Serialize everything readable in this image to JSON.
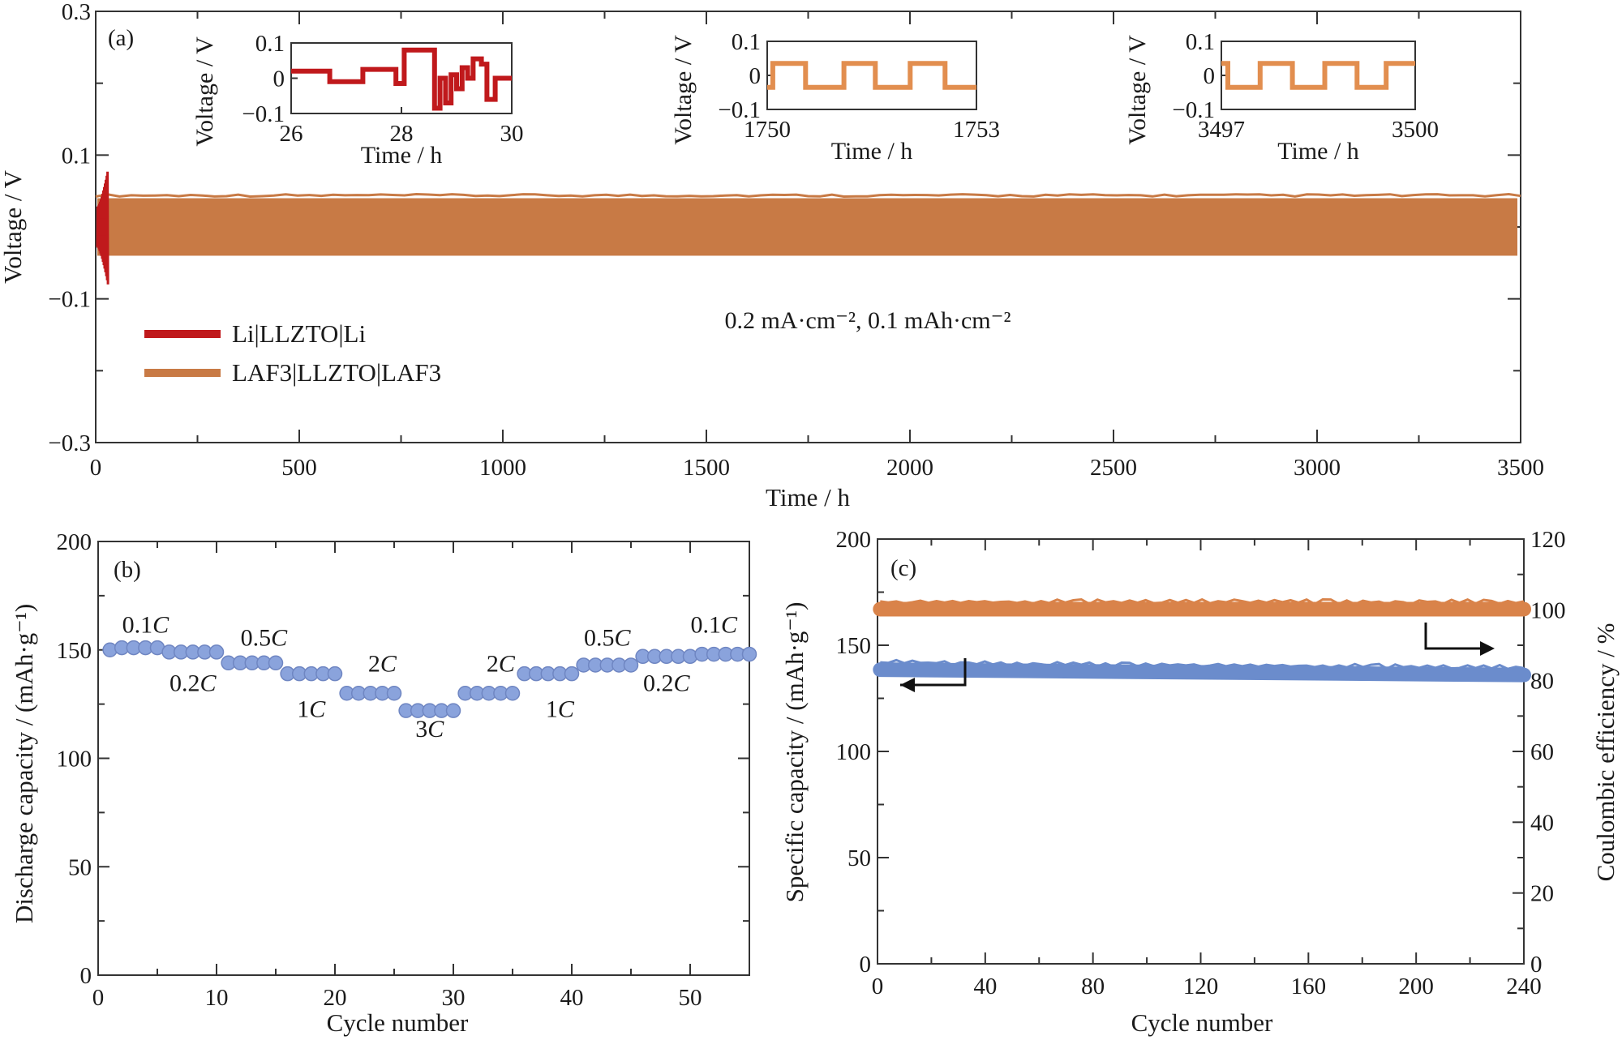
{
  "chart_data": [
    {
      "panel": "(a)",
      "type": "line",
      "xlabel": "Time / h",
      "ylabel": "Voltage / V",
      "xlim": [
        0,
        3500
      ],
      "ylim": [
        -0.3,
        0.3
      ],
      "xticks": [
        "0",
        "500",
        "1000",
        "1500",
        "2000",
        "2500",
        "3000",
        "3500"
      ],
      "yticks": [
        "0.3",
        "0.1",
        "−0.1",
        "−0.3"
      ],
      "annotation": "0.2 mA·cm⁻², 0.1 mAh·cm⁻²",
      "legend": [
        "Li|LLZTO|Li",
        "LAF3|LLZTO|LAF3"
      ],
      "series": [
        {
          "name": "Li|LLZTO|Li",
          "color": "#c0191c",
          "x_range": [
            0,
            30
          ],
          "amplitude_v": 0.08
        },
        {
          "name": "LAF3|LLZTO|LAF3",
          "color": "#c87a45",
          "x_range": [
            0,
            3500
          ],
          "amplitude_v": 0.04
        }
      ],
      "insets": [
        {
          "xlabel": "Time / h",
          "ylabel": "Voltage / V",
          "xlim": [
            26,
            30
          ],
          "ylim": [
            -0.1,
            0.1
          ],
          "xticks": [
            "26",
            "28",
            "30"
          ],
          "yticks": [
            "0.1",
            "0",
            "−0.1"
          ],
          "color": "#c0191c",
          "x": [
            26.0,
            26.7,
            26.7,
            27.3,
            27.3,
            27.9,
            27.9,
            28.05,
            28.05,
            28.6,
            28.6,
            28.7,
            28.7,
            28.8,
            28.8,
            28.9,
            28.9,
            29.0,
            29.0,
            29.1,
            29.1,
            29.2,
            29.2,
            29.3,
            29.3,
            29.45,
            29.45,
            29.55,
            29.55,
            29.7,
            29.7,
            30.0
          ],
          "y": [
            0.02,
            0.02,
            -0.01,
            -0.01,
            0.025,
            0.025,
            -0.015,
            -0.015,
            0.08,
            0.08,
            -0.085,
            -0.085,
            0.0,
            0.0,
            -0.07,
            -0.07,
            0.01,
            0.01,
            -0.03,
            -0.03,
            0.03,
            0.03,
            0.0,
            0.0,
            0.055,
            0.055,
            0.04,
            0.04,
            -0.06,
            -0.06,
            0.0,
            0.0
          ]
        },
        {
          "xlabel": "Time / h",
          "ylabel": "Voltage / V",
          "xlim": [
            1750,
            1753
          ],
          "ylim": [
            -0.1,
            0.1
          ],
          "xticks": [
            "1750",
            "1753"
          ],
          "yticks": [
            "0.1",
            "0",
            "−0.1"
          ],
          "color": "#e28e4f",
          "x": [
            1750.0,
            1750.08,
            1750.08,
            1750.55,
            1750.55,
            1751.1,
            1751.1,
            1751.55,
            1751.55,
            1752.05,
            1752.05,
            1752.55,
            1752.55,
            1753.0
          ],
          "y": [
            -0.035,
            -0.035,
            0.035,
            0.035,
            -0.035,
            -0.035,
            0.035,
            0.035,
            -0.035,
            -0.035,
            0.035,
            0.035,
            -0.035,
            -0.035
          ]
        },
        {
          "xlabel": "Time / h",
          "ylabel": "Voltage / V",
          "xlim": [
            3497,
            3500
          ],
          "ylim": [
            -0.1,
            0.1
          ],
          "xticks": [
            "3497",
            "3500"
          ],
          "yticks": [
            "0.1",
            "0",
            "−0.1"
          ],
          "color": "#e28e4f",
          "x": [
            3497.0,
            3497.1,
            3497.1,
            3497.6,
            3497.6,
            3498.1,
            3498.1,
            3498.6,
            3498.6,
            3499.1,
            3499.1,
            3499.55,
            3499.55,
            3500.0
          ],
          "y": [
            0.035,
            0.035,
            -0.035,
            -0.035,
            0.035,
            0.035,
            -0.035,
            -0.035,
            0.035,
            0.035,
            -0.035,
            -0.035,
            0.035,
            0.035
          ]
        }
      ]
    },
    {
      "panel": "(b)",
      "type": "scatter",
      "xlabel": "Cycle number",
      "ylabel": "Discharge capacity / (mAh·g⁻¹)",
      "xlim": [
        0,
        55
      ],
      "ylim": [
        0,
        200
      ],
      "xticks": [
        "0",
        "10",
        "20",
        "30",
        "40",
        "50"
      ],
      "yticks": [
        "0",
        "50",
        "100",
        "150",
        "200"
      ],
      "color": "#8aa3dc",
      "x": [
        1,
        2,
        3,
        4,
        5,
        6,
        7,
        8,
        9,
        10,
        11,
        12,
        13,
        14,
        15,
        16,
        17,
        18,
        19,
        20,
        21,
        22,
        23,
        24,
        25,
        26,
        27,
        28,
        29,
        30,
        31,
        32,
        33,
        34,
        35,
        36,
        37,
        38,
        39,
        40,
        41,
        42,
        43,
        44,
        45,
        46,
        47,
        48,
        49,
        50,
        51,
        52,
        53,
        54,
        55
      ],
      "y": [
        150,
        151,
        151,
        151,
        151,
        149,
        149,
        149,
        149,
        149,
        144,
        144,
        144,
        144,
        144,
        139,
        139,
        139,
        139,
        139,
        130,
        130,
        130,
        130,
        130,
        122,
        122,
        122,
        122,
        122,
        130,
        130,
        130,
        130,
        130,
        139,
        139,
        139,
        139,
        139,
        143,
        143,
        143,
        143,
        143,
        147,
        147,
        147,
        147,
        147,
        148,
        148,
        148,
        148,
        148
      ],
      "rate_labels": [
        {
          "text": "0.1",
          "x": 4,
          "y": 158
        },
        {
          "text": "0.2",
          "x": 8,
          "y": 131
        },
        {
          "text": "0.5",
          "x": 14,
          "y": 152
        },
        {
          "text": "1",
          "x": 18,
          "y": 119
        },
        {
          "text": "2",
          "x": 24,
          "y": 140
        },
        {
          "text": "3",
          "x": 28,
          "y": 110
        },
        {
          "text": "2",
          "x": 34,
          "y": 140
        },
        {
          "text": "1",
          "x": 39,
          "y": 119
        },
        {
          "text": "0.5",
          "x": 43,
          "y": 152
        },
        {
          "text": "0.2",
          "x": 48,
          "y": 131
        },
        {
          "text": "0.1",
          "x": 52,
          "y": 158
        }
      ],
      "rate_unit": "C"
    },
    {
      "panel": "(c)",
      "type": "scatter",
      "xlabel": "Cycle number",
      "ylabel_left": "Specific capacity / (mAh·g⁻¹)",
      "ylabel_right": "Coulombic efficiency / %",
      "xlim": [
        0,
        240
      ],
      "ylim_left": [
        0,
        200
      ],
      "ylim_right": [
        0,
        120
      ],
      "xticks": [
        "0",
        "40",
        "80",
        "120",
        "160",
        "200",
        "240"
      ],
      "yticks_left": [
        "0",
        "50",
        "100",
        "150",
        "200"
      ],
      "yticks_right": [
        "0",
        "20",
        "40",
        "60",
        "80",
        "100",
        "120"
      ],
      "series": [
        {
          "axis": "left",
          "color": "#6b8ccc",
          "x_range": [
            1,
            240
          ],
          "y_start": 138.5,
          "y_end": 136
        },
        {
          "axis": "right",
          "color": "#d9834a",
          "x_range": [
            1,
            240
          ],
          "y_start": 100.2,
          "y_end": 100.2
        }
      ]
    }
  ]
}
